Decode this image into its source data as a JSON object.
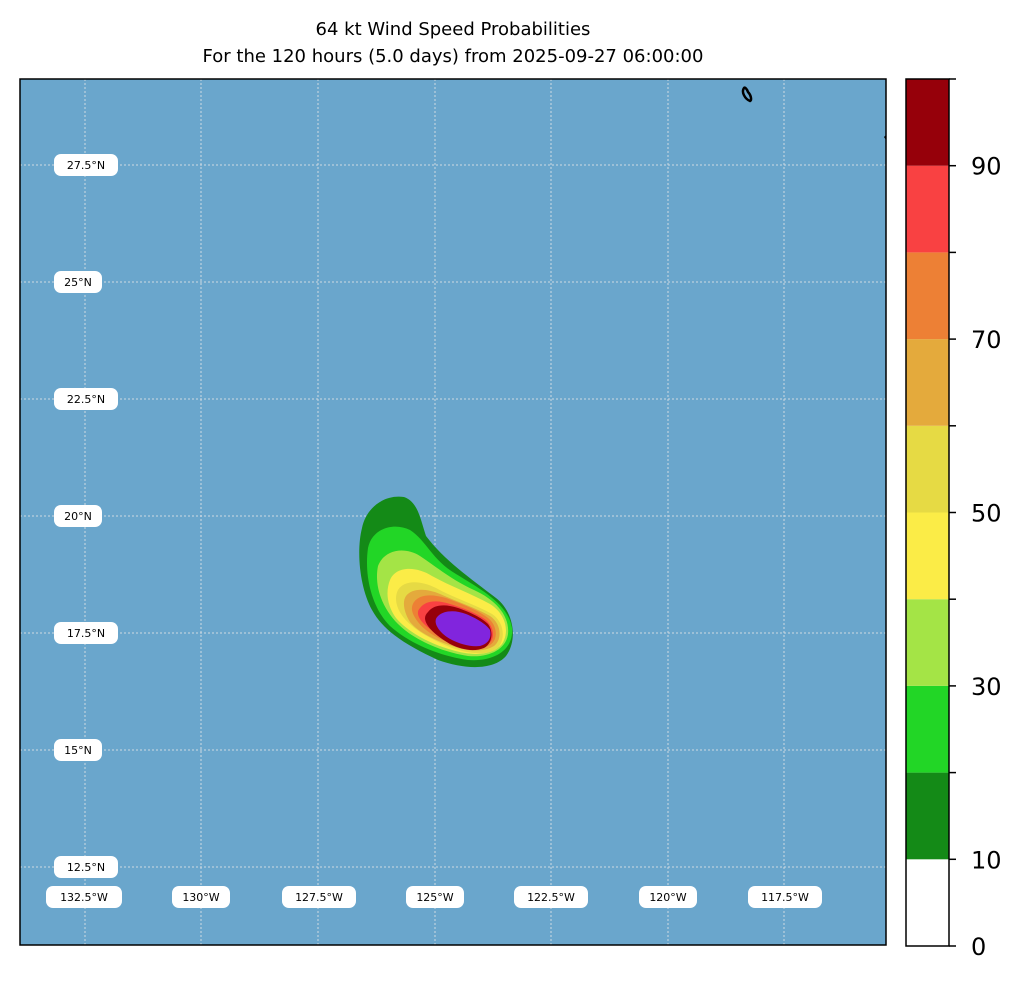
{
  "title": {
    "line1": "64 kt Wind Speed Probabilities",
    "line2": "For the 120 hours (5.0 days) from 2025-09-27 06:00:00"
  },
  "map": {
    "ocean_color": "#6aa6cc",
    "lat_labels": [
      "27.5°N",
      "25°N",
      "22.5°N",
      "20°N",
      "17.5°N",
      "15°N",
      "12.5°N"
    ],
    "lon_labels": [
      "132.5°W",
      "130°W",
      "127.5°W",
      "125°W",
      "122.5°W",
      "120°W",
      "117.5°W"
    ],
    "lon_range": [
      -134.2,
      -115.6
    ],
    "lat_range": [
      10.5,
      29.3
    ]
  },
  "chart_data": {
    "type": "heatmap",
    "title": "64 kt Wind Speed Probabilities",
    "subtitle": "For the 120 hours (5.0 days) from 2025-09-27 06:00:00",
    "variable": "probability (%)",
    "levels": [
      0,
      10,
      20,
      30,
      40,
      50,
      60,
      70,
      80,
      90,
      100
    ],
    "level_colors": [
      "#ffffff",
      "#148a17",
      "#22d626",
      "#a4e446",
      "#fbec47",
      "#e6da44",
      "#e4aa3c",
      "#ed8035",
      "#f94142",
      "#96000a",
      "#8125dd"
    ],
    "colorbar_ticks": [
      "0",
      "10",
      "30",
      "50",
      "70",
      "90"
    ],
    "colorbar_tick_values": [
      0,
      10,
      30,
      50,
      70,
      90
    ],
    "probability_maximum_center": {
      "lon": -124.2,
      "lat": 17.5
    }
  }
}
